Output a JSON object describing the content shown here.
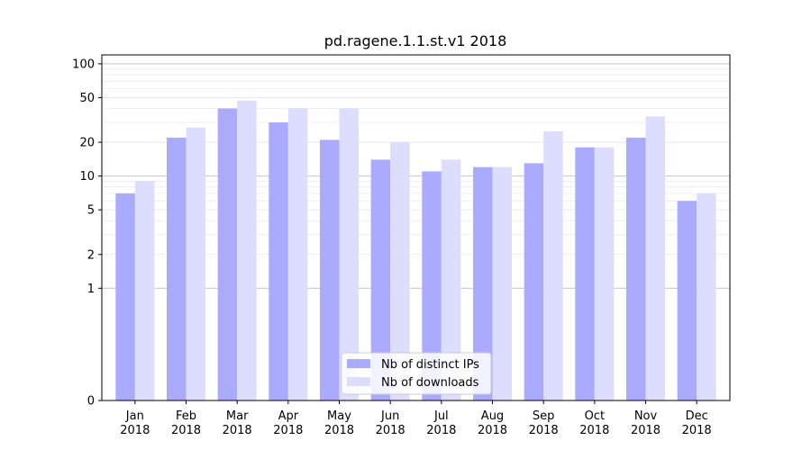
{
  "chart_data": {
    "type": "bar",
    "title": "pd.ragene.1.1.st.v1 2018",
    "xlabel": "",
    "ylabel": "",
    "y_scale": "symlog",
    "y_ticks": [
      0,
      1,
      2,
      5,
      10,
      20,
      50,
      100
    ],
    "ylim": [
      0,
      120
    ],
    "grid": true,
    "legend_position": "bottom-center",
    "categories": [
      [
        "Jan",
        "2018"
      ],
      [
        "Feb",
        "2018"
      ],
      [
        "Mar",
        "2018"
      ],
      [
        "Apr",
        "2018"
      ],
      [
        "May",
        "2018"
      ],
      [
        "Jun",
        "2018"
      ],
      [
        "Jul",
        "2018"
      ],
      [
        "Aug",
        "2018"
      ],
      [
        "Sep",
        "2018"
      ],
      [
        "Oct",
        "2018"
      ],
      [
        "Nov",
        "2018"
      ],
      [
        "Dec",
        "2018"
      ]
    ],
    "series": [
      {
        "name": "Nb of distinct IPs",
        "color": "#aaaaff",
        "values": [
          7,
          22,
          40,
          30,
          21,
          14,
          11,
          12,
          13,
          18,
          22,
          6
        ]
      },
      {
        "name": "Nb of downloads",
        "color": "#ddddff",
        "values": [
          9,
          27,
          47,
          40,
          40,
          20,
          14,
          12,
          25,
          18,
          34,
          7
        ]
      }
    ]
  }
}
